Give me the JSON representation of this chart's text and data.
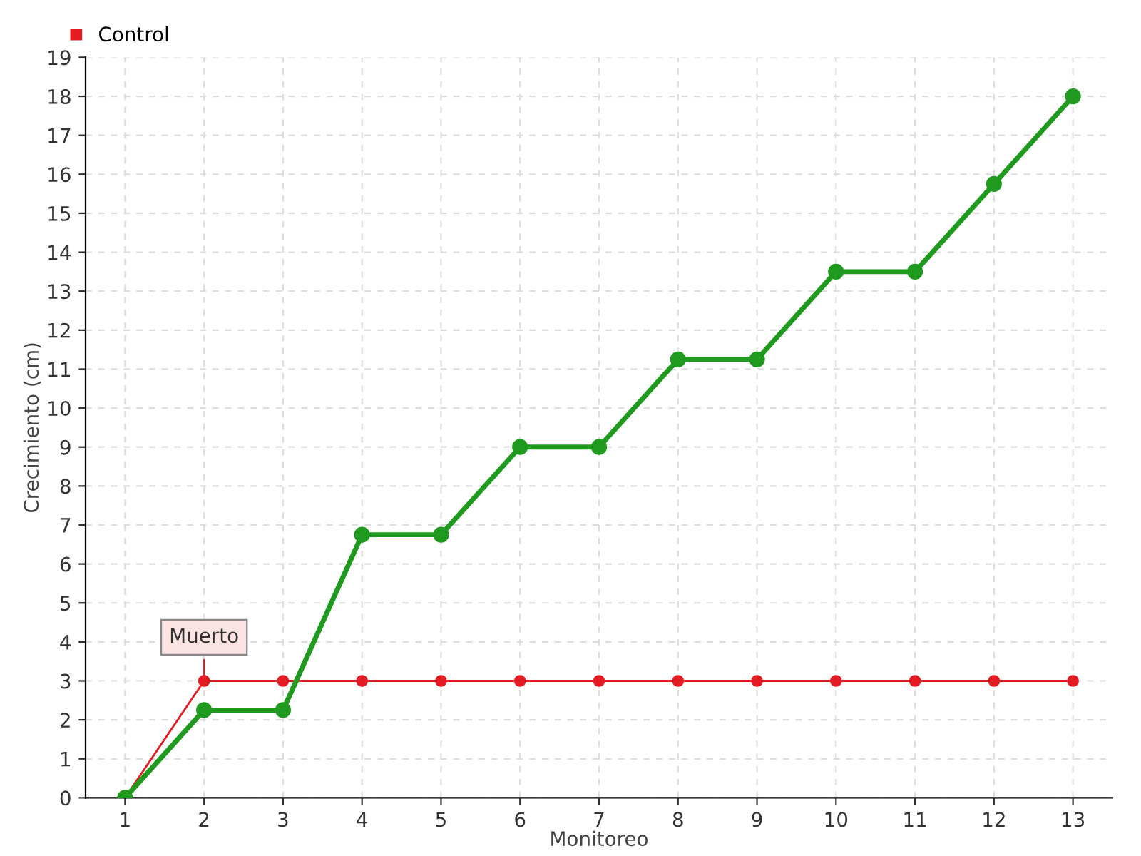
{
  "chart_data": {
    "type": "line",
    "xlabel": "Monitoreo",
    "ylabel": "Crecimiento (cm)",
    "x": [
      1,
      2,
      3,
      4,
      5,
      6,
      7,
      8,
      9,
      10,
      11,
      12,
      13
    ],
    "series": [
      {
        "color": "#1f9a1f",
        "values": [
          0,
          2.25,
          2.25,
          6.75,
          6.75,
          9,
          9,
          11.25,
          11.25,
          13.5,
          13.5,
          15.75,
          18
        ]
      },
      {
        "name": "Control",
        "color": "#e31c23",
        "values": [
          0,
          3,
          3,
          3,
          3,
          3,
          3,
          3,
          3,
          3,
          3,
          3,
          3
        ]
      }
    ],
    "xlim": [
      0.5,
      13.5
    ],
    "xticks": [
      1,
      2,
      3,
      4,
      5,
      6,
      7,
      8,
      9,
      10,
      11,
      12,
      13
    ],
    "ylim": [
      0,
      19
    ],
    "yticks": [
      0,
      1,
      2,
      3,
      4,
      5,
      6,
      7,
      8,
      9,
      10,
      11,
      12,
      13,
      14,
      15,
      16,
      17,
      18,
      19
    ],
    "grid": true,
    "legend": "top left",
    "marker": "circle",
    "annotations": [
      {
        "text": "Muerto",
        "x": 2,
        "y": 3
      }
    ]
  }
}
